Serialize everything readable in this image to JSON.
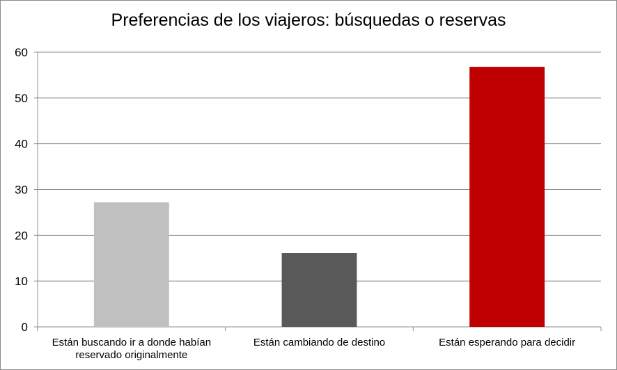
{
  "chart_data": {
    "type": "bar",
    "title": "Preferencias de los viajeros: búsquedas o reservas",
    "xlabel": "",
    "ylabel": "",
    "ylim": [
      0,
      60
    ],
    "yticks": [
      0,
      10,
      20,
      30,
      40,
      50,
      60
    ],
    "grid": true,
    "legend": "none",
    "categories": [
      [
        "Están buscando ir a donde habían",
        "reservado originalmente"
      ],
      [
        "Están cambiando de destino"
      ],
      [
        "Están esperando para decidir"
      ]
    ],
    "values": [
      27.2,
      16.1,
      56.8
    ],
    "colors": [
      "#c0c0c0",
      "#595959",
      "#c00000"
    ]
  }
}
